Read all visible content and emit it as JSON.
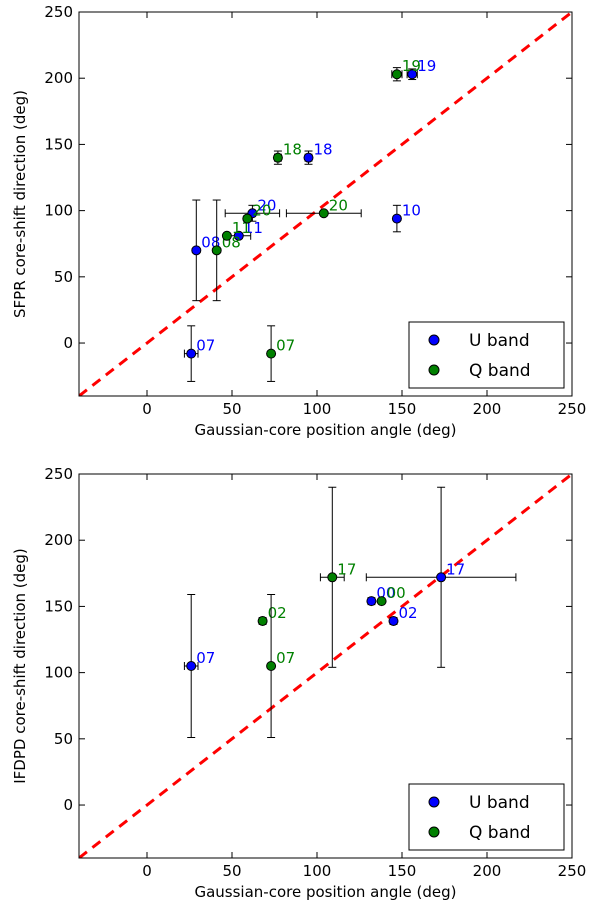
{
  "colors": {
    "U": "#0000ff",
    "Q": "#008000",
    "diag": "#ff0000"
  },
  "chart_data": [
    {
      "type": "scatter",
      "xlabel": "Gaussian-core position angle (deg)",
      "ylabel": "SFPR core-shift direction (deg)",
      "xlim": [
        -40,
        250
      ],
      "ylim": [
        -40,
        250
      ],
      "xticks": [
        0,
        50,
        100,
        150,
        200,
        250
      ],
      "yticks": [
        0,
        50,
        100,
        150,
        200,
        250
      ],
      "diagonal": "y = x (dashed)",
      "legend": {
        "placement": "bottom-right",
        "entries": [
          "U band",
          "Q band"
        ]
      },
      "series": [
        {
          "name": "U band",
          "color_key": "U",
          "points": [
            {
              "label": "07",
              "x": 26,
              "y": -8,
              "xerr": 4,
              "yerr": 21
            },
            {
              "label": "08",
              "x": 29,
              "y": 70,
              "xerr": 1,
              "yerr": 38
            },
            {
              "label": "11",
              "x": 54,
              "y": 81,
              "xerr": 7,
              "yerr": 2
            },
            {
              "label": "20",
              "x": 62,
              "y": 98,
              "xerr": 16,
              "yerr": 6
            },
            {
              "label": "18",
              "x": 95,
              "y": 140,
              "xerr": 2,
              "yerr": 5
            },
            {
              "label": "10",
              "x": 147,
              "y": 94,
              "xerr": 1,
              "yerr": 10
            },
            {
              "label": "19",
              "x": 156,
              "y": 203,
              "xerr": 3,
              "yerr": 4
            }
          ]
        },
        {
          "name": "Q band",
          "color_key": "Q",
          "points": [
            {
              "label": "08",
              "x": 41,
              "y": 70,
              "xerr": 1,
              "yerr": 38
            },
            {
              "label": "11",
              "x": 47,
              "y": 81,
              "xerr": 1,
              "yerr": 1
            },
            {
              "label": "20",
              "x": 59,
              "y": 94,
              "xerr": 1,
              "yerr": 2
            },
            {
              "label": "07",
              "x": 73,
              "y": -8,
              "xerr": 1,
              "yerr": 21
            },
            {
              "label": "18",
              "x": 77,
              "y": 140,
              "xerr": 2,
              "yerr": 5
            },
            {
              "label": "20",
              "x": 104,
              "y": 98,
              "xerr": 22,
              "yerr": 1
            },
            {
              "label": "19",
              "x": 147,
              "y": 203,
              "xerr": 3,
              "yerr": 5
            }
          ]
        }
      ]
    },
    {
      "type": "scatter",
      "xlabel": "Gaussian-core position angle (deg)",
      "ylabel": "IFDPD core-shift direction (deg)",
      "xlim": [
        -40,
        250
      ],
      "ylim": [
        -40,
        250
      ],
      "xticks": [
        0,
        50,
        100,
        150,
        200,
        250
      ],
      "yticks": [
        0,
        50,
        100,
        150,
        200,
        250
      ],
      "diagonal": "y = x (dashed)",
      "legend": {
        "placement": "bottom-right",
        "entries": [
          "U band",
          "Q band"
        ]
      },
      "series": [
        {
          "name": "U band",
          "color_key": "U",
          "points": [
            {
              "label": "07",
              "x": 26,
              "y": 105,
              "xerr": 4,
              "yerr": 54
            },
            {
              "label": "00",
              "x": 132,
              "y": 154,
              "xerr": 2,
              "yerr": 1
            },
            {
              "label": "02",
              "x": 145,
              "y": 139,
              "xerr": 2,
              "yerr": 2
            },
            {
              "label": "17",
              "x": 173,
              "y": 172,
              "xerr": 44,
              "yerr": 68
            }
          ]
        },
        {
          "name": "Q band",
          "color_key": "Q",
          "points": [
            {
              "label": "02",
              "x": 68,
              "y": 139,
              "xerr": 2,
              "yerr": 2
            },
            {
              "label": "07",
              "x": 73,
              "y": 105,
              "xerr": 1,
              "yerr": 54
            },
            {
              "label": "17",
              "x": 109,
              "y": 172,
              "xerr": 7,
              "yerr": 68
            },
            {
              "label": "00",
              "x": 138,
              "y": 154,
              "xerr": 1,
              "yerr": 1
            }
          ]
        }
      ]
    }
  ]
}
